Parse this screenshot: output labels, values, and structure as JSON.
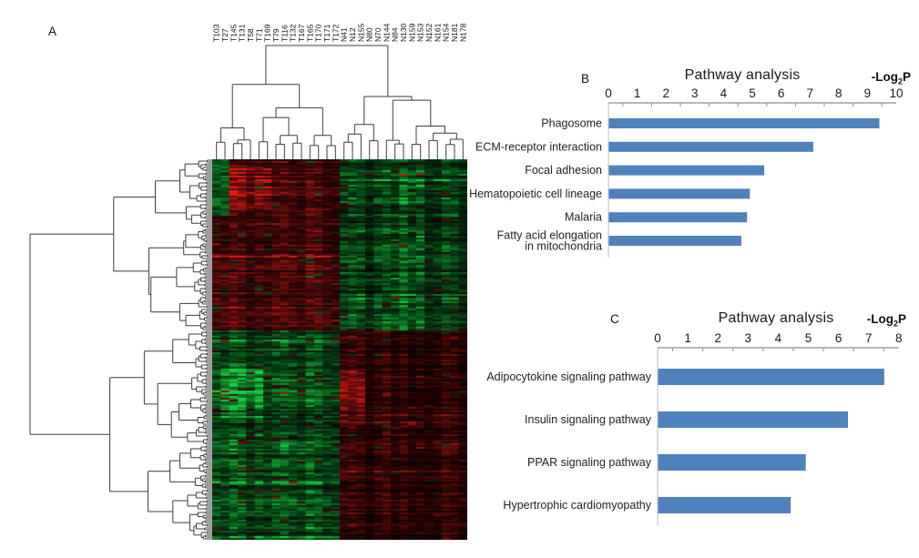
{
  "figure": {
    "background": "#ffffff",
    "panels": {
      "a": {
        "label": "A"
      },
      "b": {
        "label": "B",
        "title": "Pathway analysis",
        "axis_unit": {
          "prefix": "-Log",
          "sub": "2",
          "suffix": "P"
        }
      },
      "c": {
        "label": "C",
        "title": "Pathway analysis",
        "axis_unit": {
          "prefix": "-Log",
          "sub": "2",
          "suffix": "P"
        }
      }
    },
    "heatmap_style": {
      "upregulated_color": "#eb1e19",
      "downregulated_color": "#19d746",
      "background_color": "#060404",
      "dendrogram_line_color": "#3d3d3d"
    }
  },
  "chart_data": [
    {
      "type": "heatmap",
      "panel": "A",
      "columns": [
        "T103",
        "T27",
        "T145",
        "T131",
        "T58",
        "T71",
        "T169",
        "T79",
        "T116",
        "T132",
        "T167",
        "T165",
        "T170",
        "T171",
        "T172",
        "N41",
        "N12",
        "N155",
        "N80",
        "N70",
        "N144",
        "N84",
        "N130",
        "N159",
        "N153",
        "N152",
        "N161",
        "N154",
        "N181",
        "N178"
      ],
      "rows": "unlabeled genes (~200), hierarchically clustered",
      "column_clusters": {
        "tumor_samples": 15,
        "normal_samples": 15
      },
      "row_cluster_split_fraction": 0.45,
      "pattern": "upper gene block: red (up) in T samples / green (down) in N samples; lower gene block: green in T samples / red in N samples; mostly near-black low intensities",
      "colorscale": {
        "high": "red",
        "low": "green",
        "mid": "black"
      }
    },
    {
      "type": "bar",
      "panel": "B",
      "orientation": "horizontal",
      "title": "Pathway analysis",
      "xlabel": "-Log2P",
      "xlim": [
        0,
        10
      ],
      "xticks": [
        0,
        1,
        2,
        3,
        4,
        5,
        6,
        7,
        8,
        9,
        10
      ],
      "categories": [
        "Phagosome",
        "ECM-receptor interaction",
        "Focal adhesion",
        "Hematopoietic cell lineage",
        "Malaria",
        "Fatty acid elongation\nin mitochondria"
      ],
      "values": [
        9.4,
        7.1,
        5.4,
        4.9,
        4.8,
        4.6
      ],
      "bar_color": "#4f81bd",
      "grid": false,
      "legend": null
    },
    {
      "type": "bar",
      "panel": "C",
      "orientation": "horizontal",
      "title": "Pathway analysis",
      "xlabel": "-Log2P",
      "xlim": [
        0,
        8
      ],
      "xticks": [
        0,
        1,
        2,
        3,
        4,
        5,
        6,
        7,
        8
      ],
      "categories": [
        "Adipocytokine signaling pathway",
        "Insulin signaling pathway",
        "PPAR signaling pathway",
        "Hypertrophic cardiomyopathy"
      ],
      "values": [
        7.5,
        6.3,
        4.9,
        4.4
      ],
      "bar_color": "#4f81bd",
      "grid": false,
      "legend": null
    }
  ]
}
